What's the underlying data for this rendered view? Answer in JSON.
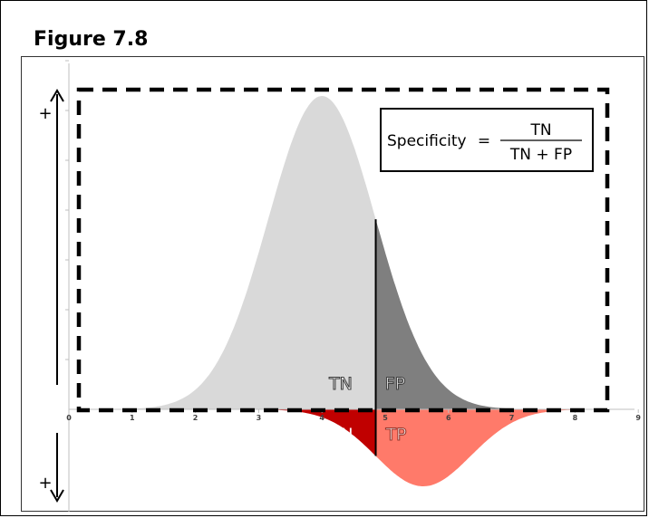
{
  "figure": {
    "title": "Figure 7.8"
  },
  "formula": {
    "lhs": "Specificity",
    "equals": "=",
    "numerator": "TN",
    "denominator": "TN + FP"
  },
  "region_labels": {
    "tn": "TN",
    "fp": "FP",
    "fn": "FN",
    "tp": "TP"
  },
  "axis": {
    "ticks": [
      "0",
      "1",
      "2",
      "3",
      "4",
      "5",
      "6",
      "7",
      "8",
      "9"
    ],
    "top_arrow_sign": "+",
    "bottom_arrow_sign": "+"
  },
  "curves": {
    "negative": {
      "mean": 4.0,
      "sd": 0.85,
      "color_left": "#d9d9d9",
      "color_right": "#7f7f7f"
    },
    "positive": {
      "mean": 5.6,
      "sd": 0.75,
      "color_left": "#c00000",
      "color_right": "#ff7a6a"
    },
    "threshold": 4.85
  },
  "colors": {
    "dashed_border": "#000000",
    "axis": "#bfbfbf",
    "threshold_line": "#000000"
  }
}
